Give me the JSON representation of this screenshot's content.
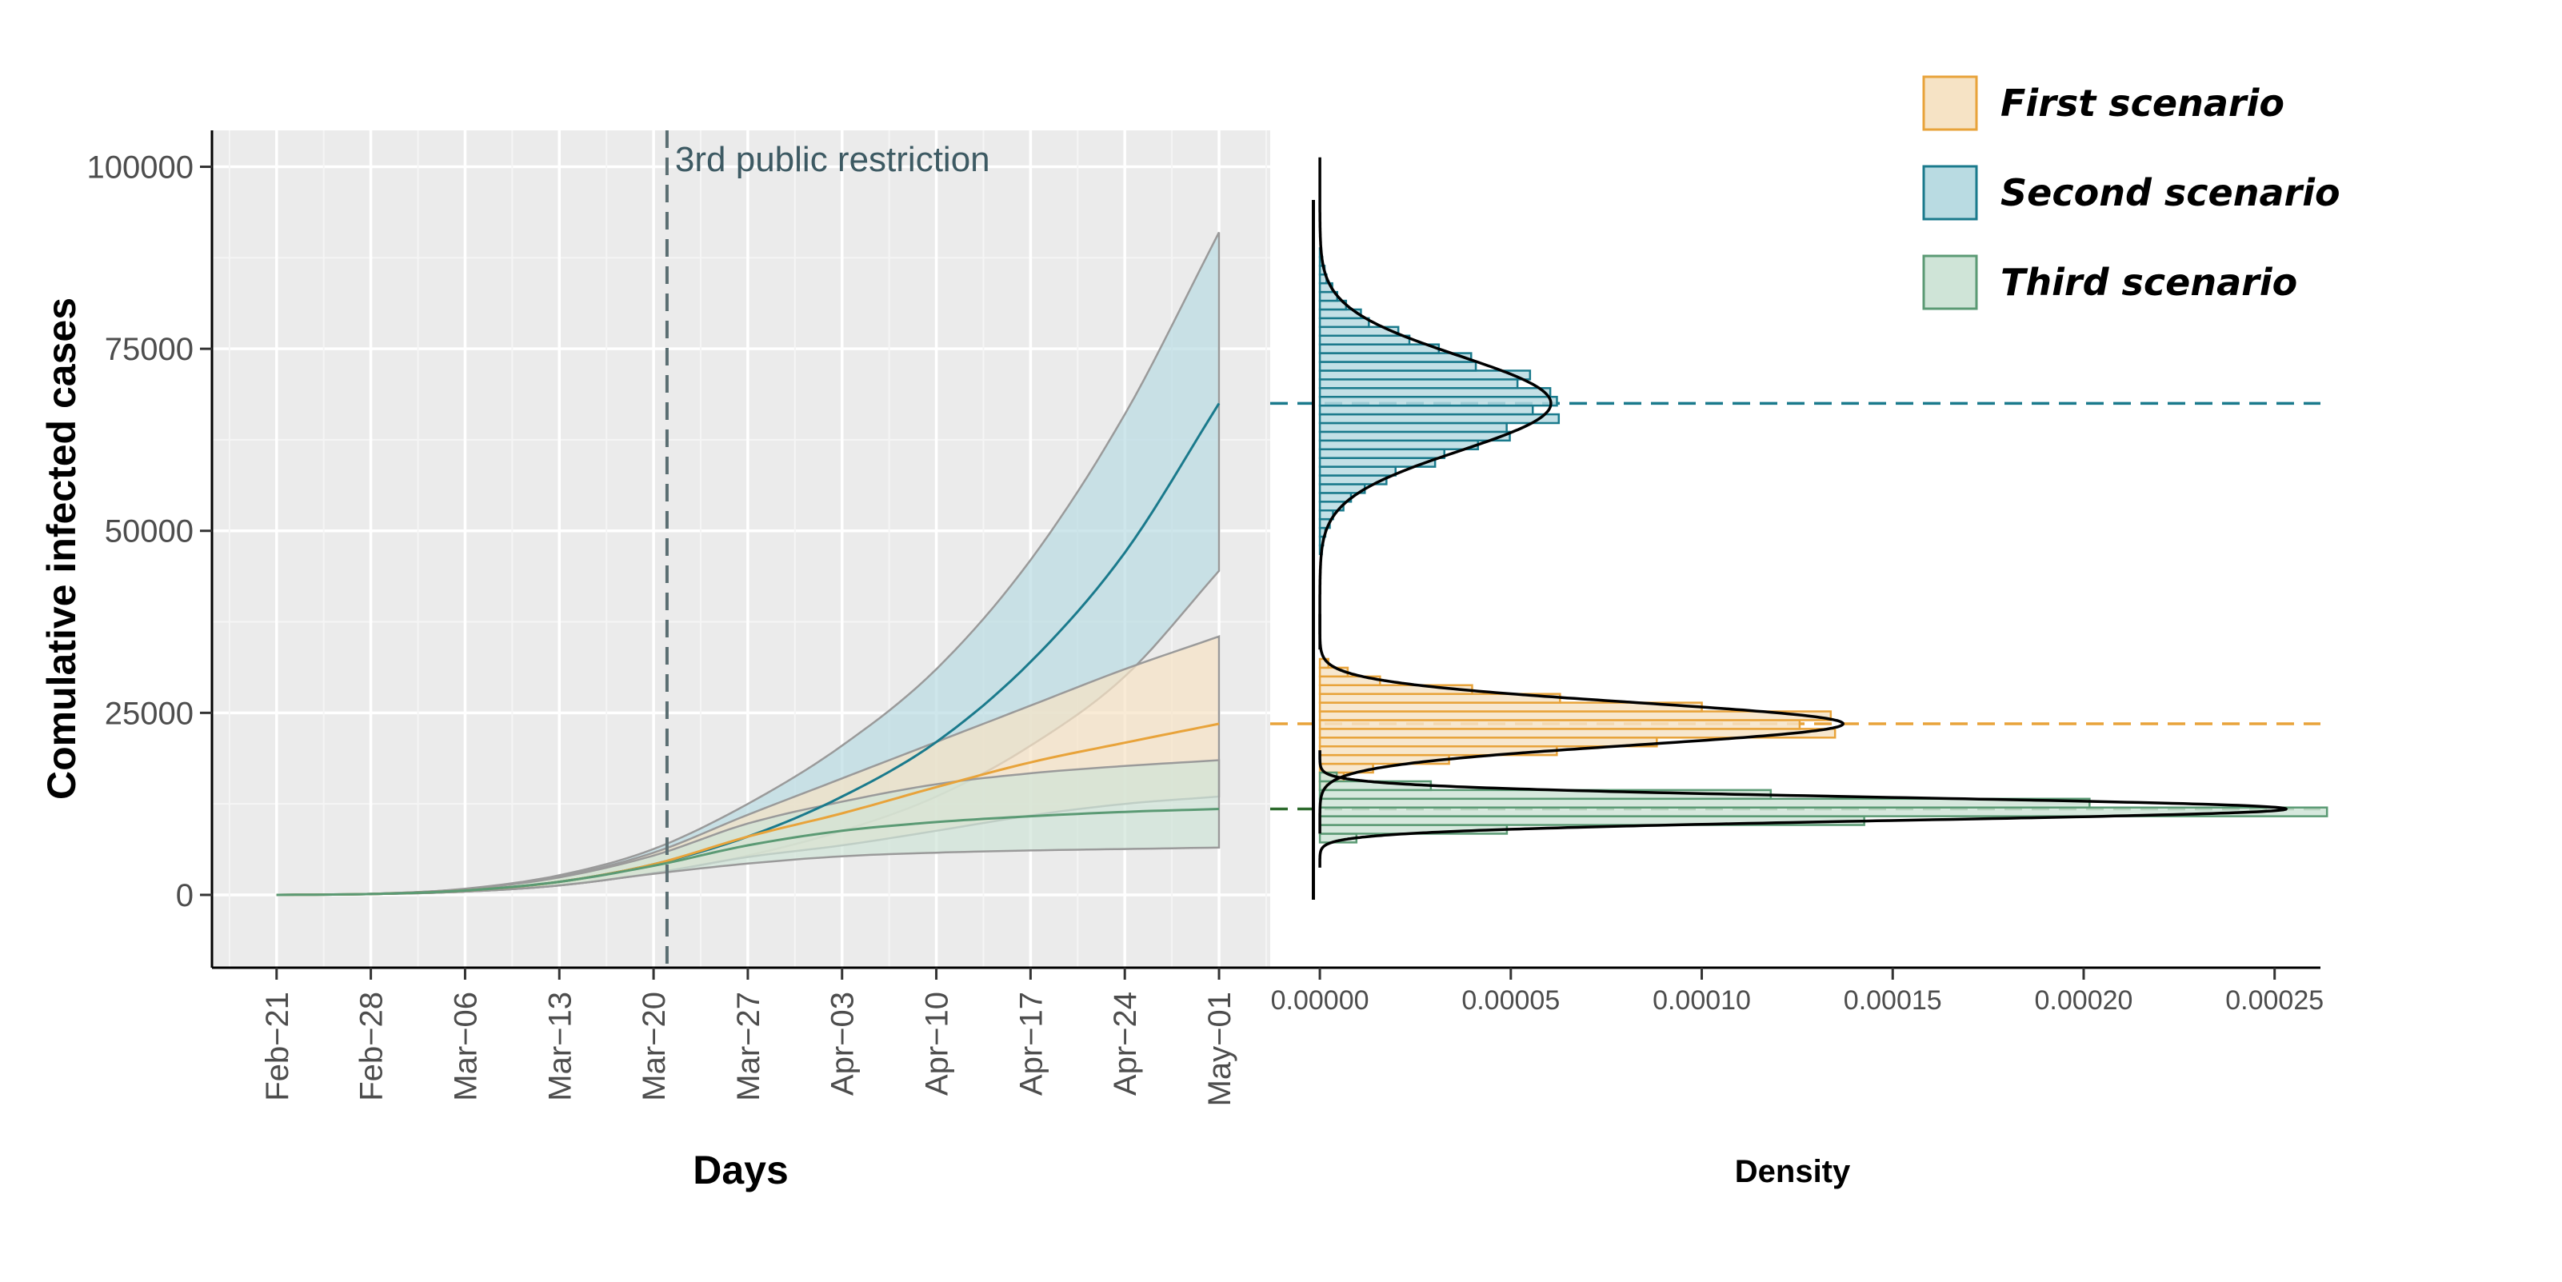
{
  "chart_data": [
    {
      "type": "line",
      "title": "",
      "xlabel": "Days",
      "ylabel": "Comulative infected cases",
      "x_tick_labels": [
        "Feb−21",
        "Feb−28",
        "Mar−06",
        "Mar−13",
        "Mar−20",
        "Mar−27",
        "Apr−03",
        "Apr−10",
        "Apr−17",
        "Apr−24",
        "May−01"
      ],
      "y_tick_labels": [
        "0",
        "25000",
        "50000",
        "75000",
        "100000"
      ],
      "y_ticks": [
        0,
        25000,
        50000,
        75000,
        100000
      ],
      "ylim": [
        -10000,
        105000
      ],
      "x_days_from_feb21": [
        0,
        7,
        14,
        21,
        28,
        35,
        42,
        49,
        56,
        63,
        70
      ],
      "grid": true,
      "annotation": {
        "text": "3rd public restriction",
        "date": "Mar−22"
      },
      "series": [
        {
          "name": "First scenario",
          "color": "#e8a33a",
          "fill": "#f6e3c5",
          "mean": [
            0,
            120,
            600,
            1800,
            4200,
            8000,
            11200,
            14800,
            18200,
            20900,
            23500
          ],
          "lower": [
            0,
            100,
            450,
            1300,
            3000,
            5200,
            6800,
            8800,
            10900,
            12500,
            13500
          ],
          "upper": [
            0,
            150,
            800,
            2500,
            5800,
            11000,
            16000,
            21000,
            26000,
            31000,
            35500
          ]
        },
        {
          "name": "Second scenario",
          "color": "#1a7a8c",
          "fill": "#b9dbe2",
          "mean": [
            0,
            120,
            600,
            1800,
            4200,
            8000,
            13500,
            21000,
            32000,
            47000,
            67500
          ],
          "lower": [
            0,
            100,
            450,
            1300,
            3000,
            5400,
            8800,
            13500,
            20500,
            30000,
            44500
          ],
          "upper": [
            0,
            150,
            850,
            2700,
            6300,
            12500,
            20500,
            31000,
            46000,
            66000,
            91000
          ]
        },
        {
          "name": "Third scenario",
          "color": "#5b9a74",
          "fill": "#cfe4d7",
          "mean": [
            0,
            120,
            600,
            1800,
            4000,
            6800,
            8800,
            10000,
            10800,
            11400,
            11800
          ],
          "lower": [
            0,
            100,
            450,
            1300,
            2900,
            4300,
            5300,
            5800,
            6100,
            6300,
            6500
          ],
          "upper": [
            0,
            150,
            800,
            2400,
            5400,
            9800,
            12800,
            15200,
            16700,
            17700,
            18500
          ]
        }
      ]
    },
    {
      "type": "histogram",
      "xlabel": "Density",
      "x_tick_labels": [
        "0.00000",
        "0.00005",
        "0.00010",
        "0.00015",
        "0.00020",
        "0.00025"
      ],
      "x_ticks": [
        0,
        5e-05,
        0.0001,
        0.00015,
        0.0002,
        0.00025
      ],
      "xlim": [
        -1.3e-05,
        0.000262
      ],
      "ylim": [
        -10000,
        105000
      ],
      "bin_width": 1200,
      "series": [
        {
          "name": "Second scenario",
          "color": "#1a7a8c",
          "fill": "#b9dbe2",
          "mean": 67500,
          "sd": 6500,
          "peak_density": 6.05e-05
        },
        {
          "name": "First scenario",
          "color": "#e8a33a",
          "fill": "#f6e3c5",
          "mean": 23500,
          "sd": 2900,
          "peak_density": 0.000137
        },
        {
          "name": "Third scenario",
          "color": "#5b9a74",
          "fill": "#cfe4d7",
          "mean": 11800,
          "sd": 1550,
          "peak_density": 0.000253
        }
      ],
      "hlines": [
        {
          "y": 67500,
          "color": "#1a7a8c"
        },
        {
          "y": 23500,
          "color": "#e8a33a"
        },
        {
          "y": 11800,
          "color": "#2d6a2d"
        }
      ]
    }
  ],
  "legend": {
    "position": "top-right",
    "items": [
      {
        "label": "First scenario",
        "fill": "#f6e3c5",
        "stroke": "#e8a33a"
      },
      {
        "label": "Second scenario",
        "fill": "#b9dbe2",
        "stroke": "#1a7a8c"
      },
      {
        "label": "Third scenario",
        "fill": "#cfe4d7",
        "stroke": "#5b9a74"
      }
    ]
  }
}
